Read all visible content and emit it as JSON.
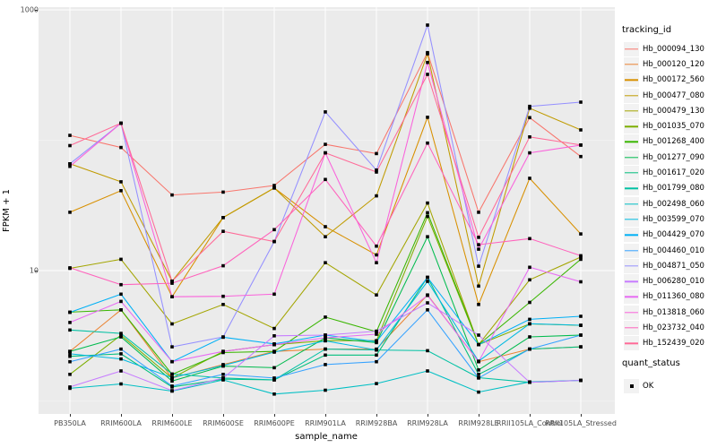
{
  "figure": {
    "y_axis_title": "FPKM + 1",
    "x_axis_title": "sample_name",
    "legend": {
      "tracking_title": "tracking_id",
      "quant_title": "quant_status",
      "quant_ok_label": "OK"
    },
    "colors": {
      "panel_bg": "#ebebeb",
      "grid_major": "#ffffff",
      "grid_minor": "#f5f5f5",
      "axis_text": "#4d4d4d",
      "point": "#000000",
      "legend_key_bg": "#f2f2f2"
    }
  },
  "chart_data": {
    "type": "line",
    "title": "",
    "xlabel": "sample_name",
    "ylabel": "FPKM + 1",
    "yscale": "log10",
    "ylim": [
      0.79,
      1050
    ],
    "ytick_values": [
      10,
      1000
    ],
    "ytick_labels": [
      "10",
      "1000"
    ],
    "yminor_values": [
      1,
      100
    ],
    "grid": true,
    "legend_position": "right",
    "point_shape": "filled-square",
    "point_color": "#000000",
    "categories": [
      "PB350LA",
      "RRIM600LA",
      "RRIM600LE",
      "RRIM600SE",
      "RRIM600PE",
      "RRIM901LA",
      "RRIM928BA",
      "RRIM928LA",
      "RRIM928LE",
      "RRII105LA_Control",
      "RRII105LA_Stressed"
    ],
    "series": [
      {
        "name": "Hb_000094_130",
        "color": "#F8766D",
        "values": [
          109,
          88,
          38,
          40,
          45,
          93,
          79,
          470,
          28,
          149,
          75
        ]
      },
      {
        "name": "Hb_000120_120",
        "color": "#EA8331",
        "values": [
          2.4,
          5.0,
          1.5,
          1.9,
          2.4,
          2.5,
          2.5,
          6.5,
          2.0,
          2.5,
          2.6
        ]
      },
      {
        "name": "Hb_000172_560",
        "color": "#D89000",
        "values": [
          28,
          41,
          6.3,
          25.5,
          43,
          21.7,
          13.2,
          150,
          5.5,
          51,
          19.1
        ]
      },
      {
        "name": "Hb_000477_080",
        "color": "#C09B00",
        "values": [
          66,
          48,
          8.3,
          25.5,
          43,
          18.2,
          37.4,
          460,
          7.6,
          176,
          120
        ]
      },
      {
        "name": "Hb_000479_130",
        "color": "#A3A500",
        "values": [
          10.4,
          12.2,
          3.9,
          5.5,
          3.6,
          11.5,
          6.5,
          33,
          2.7,
          8.5,
          12.7
        ]
      },
      {
        "name": "Hb_001035_070",
        "color": "#7CAE00",
        "values": [
          1.6,
          3.2,
          1.5,
          2.4,
          2.7,
          2.9,
          2.9,
          26,
          2.7,
          3.9,
          3.8
        ]
      },
      {
        "name": "Hb_001268_400",
        "color": "#39B600",
        "values": [
          4.8,
          5.0,
          1.6,
          2.35,
          2.4,
          4.4,
          3.4,
          27.8,
          2.7,
          5.7,
          12.2
        ]
      },
      {
        "name": "Hb_001277_090",
        "color": "#00BB4E",
        "values": [
          2.4,
          3.1,
          1.42,
          1.85,
          1.8,
          3.05,
          2.8,
          18.2,
          1.73,
          3.1,
          3.2
        ]
      },
      {
        "name": "Hb_001617_020",
        "color": "#00BF7D",
        "values": [
          2.2,
          2.3,
          1.28,
          1.47,
          1.45,
          2.25,
          2.25,
          8.9,
          1.6,
          2.5,
          2.6
        ]
      },
      {
        "name": "Hb_001799_080",
        "color": "#00C1A3",
        "values": [
          3.5,
          3.3,
          1.61,
          1.5,
          1.45,
          2.5,
          2.46,
          2.43,
          1.51,
          1.39,
          1.44
        ]
      },
      {
        "name": "Hb_002498_060",
        "color": "#00BFC4",
        "values": [
          1.25,
          1.35,
          1.19,
          1.45,
          1.13,
          1.21,
          1.36,
          1.7,
          1.17,
          1.4,
          1.44
        ]
      },
      {
        "name": "Hb_003599_070",
        "color": "#00BAE0",
        "values": [
          2.3,
          2.1,
          1.51,
          1.87,
          2.37,
          2.89,
          2.46,
          8.27,
          2.02,
          3.91,
          3.81
        ]
      },
      {
        "name": "Hb_004429_070",
        "color": "#00B0F6",
        "values": [
          4.78,
          6.6,
          2.0,
          3.08,
          2.74,
          3.2,
          2.85,
          8.85,
          2.7,
          4.23,
          4.46
        ]
      },
      {
        "name": "Hb_004460_010",
        "color": "#35A2FF",
        "values": [
          2.0,
          2.5,
          1.3,
          1.6,
          1.5,
          1.9,
          2.0,
          5.0,
          1.5,
          2.5,
          3.2
        ]
      },
      {
        "name": "Hb_004871_050",
        "color": "#9590FF",
        "values": [
          66,
          135,
          2.6,
          3.1,
          16.7,
          165,
          59,
          764,
          10.8,
          182,
          196
        ]
      },
      {
        "name": "Hb_006280_010",
        "color": "#C77CFF",
        "values": [
          1.28,
          1.7,
          1.2,
          1.5,
          3.16,
          3.2,
          3.43,
          5.66,
          3.2,
          1.39,
          1.44
        ]
      },
      {
        "name": "Hb_011360_080",
        "color": "#E76BF3",
        "values": [
          4.0,
          5.8,
          2.0,
          2.4,
          2.7,
          3.05,
          3.25,
          6.45,
          2.0,
          10.6,
          8.2
        ]
      },
      {
        "name": "Hb_013818_060",
        "color": "#FA62DB",
        "values": [
          63,
          135,
          6.3,
          6.35,
          6.6,
          80,
          11.5,
          395,
          14.6,
          80,
          91.6
        ]
      },
      {
        "name": "Hb_023732_040",
        "color": "#FF62BC",
        "values": [
          10.5,
          7.8,
          8.0,
          10.9,
          20.6,
          50,
          15.4,
          95,
          15.8,
          17.6,
          13.0
        ]
      },
      {
        "name": "Hb_152439_020",
        "color": "#FF6A98",
        "values": [
          91,
          135,
          8.3,
          20,
          16.7,
          80,
          57,
          320,
          18,
          106,
          92
        ]
      }
    ]
  }
}
